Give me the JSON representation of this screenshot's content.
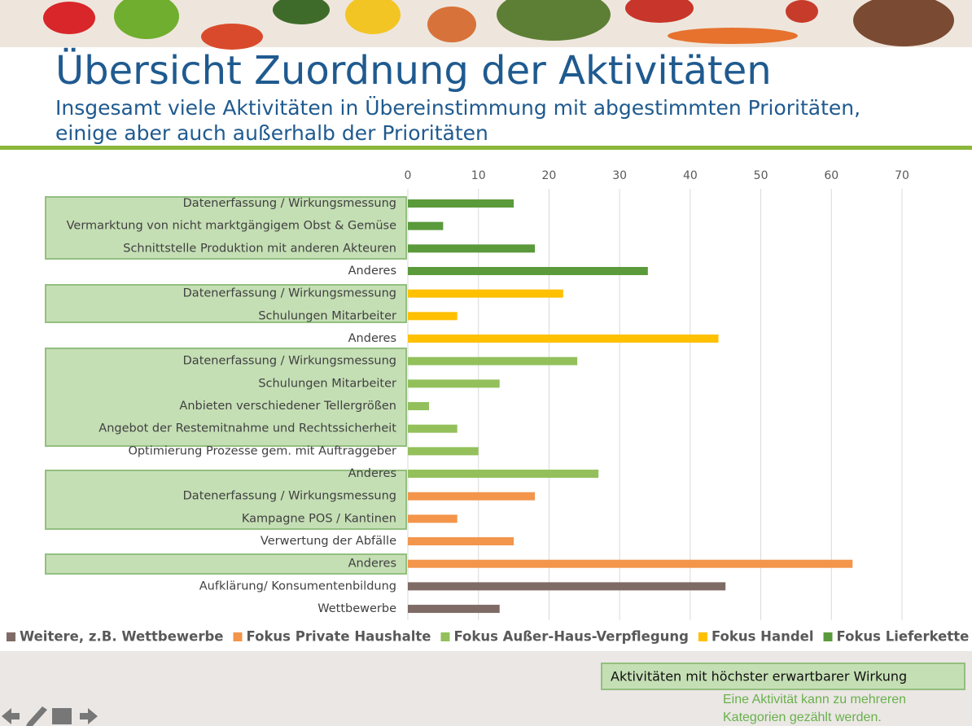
{
  "chart_data": {
    "type": "bar",
    "orientation": "horizontal",
    "title": "Übersicht Zuordnung der Aktivitäten",
    "subtitle": [
      "Insgesamt viele Aktivitäten in Übereinstimmung mit abgestimmten Prioritäten,",
      "einige aber auch außerhalb der Prioritäten"
    ],
    "categories": [
      "Datenerfassung / Wirkungsmessung",
      "Vermarktung von nicht marktgängigem Obst & Gemüse",
      "Schnittstelle Produktion mit anderen Akteuren",
      "Anderes",
      "Datenerfassung / Wirkungsmessung",
      "Schulungen Mitarbeiter",
      "Anderes",
      "Datenerfassung / Wirkungsmessung",
      "Schulungen Mitarbeiter",
      "Anbieten verschiedener Tellergrößen",
      "Angebot der Restemitnahme und Rechtssicherheit",
      "Optimierung Prozesse gem. mit Auftraggeber",
      "Anderes",
      "Datenerfassung / Wirkungsmessung",
      "Kampagne POS / Kantinen",
      "Verwertung der Abfälle",
      "Anderes",
      "Aufklärung/ Konsumentenbildung",
      "Wettbewerbe"
    ],
    "series": [
      {
        "name": "Weitere, z.B. Wettbewerbe",
        "color": "#7f6b66",
        "values": [
          null,
          null,
          null,
          null,
          null,
          null,
          null,
          null,
          null,
          null,
          null,
          null,
          null,
          null,
          null,
          null,
          null,
          45,
          13
        ]
      },
      {
        "name": "Fokus Private Haushalte",
        "color": "#f3954b",
        "values": [
          null,
          null,
          null,
          null,
          null,
          null,
          null,
          null,
          null,
          null,
          null,
          null,
          null,
          18,
          7,
          15,
          63,
          null,
          null
        ]
      },
      {
        "name": "Fokus Außer-Haus-Verpflegung",
        "color": "#93c05b",
        "values": [
          null,
          null,
          null,
          null,
          null,
          null,
          null,
          24,
          13,
          3,
          7,
          10,
          27,
          null,
          null,
          null,
          null,
          null,
          null
        ]
      },
      {
        "name": "Fokus Handel",
        "color": "#ffc000",
        "values": [
          null,
          null,
          null,
          null,
          22,
          7,
          44,
          null,
          null,
          null,
          null,
          null,
          null,
          null,
          null,
          null,
          null,
          null,
          null
        ]
      },
      {
        "name": "Fokus Lieferkette / Produktion",
        "color": "#5a9a3b",
        "values": [
          15,
          5,
          18,
          34,
          null,
          null,
          null,
          null,
          null,
          null,
          null,
          null,
          null,
          null,
          null,
          null,
          null,
          null,
          null
        ]
      }
    ],
    "xlim": [
      0,
      70
    ],
    "xticks": [
      0,
      10,
      20,
      30,
      40,
      50,
      60,
      70
    ],
    "grid": true,
    "legend": "bottom",
    "annotations": [
      "Aktivitäten mit höchster erwartbarer Wirkung",
      "Eine Aktivität kann zu mehreren",
      "Kategorien gezählt werden."
    ]
  }
}
